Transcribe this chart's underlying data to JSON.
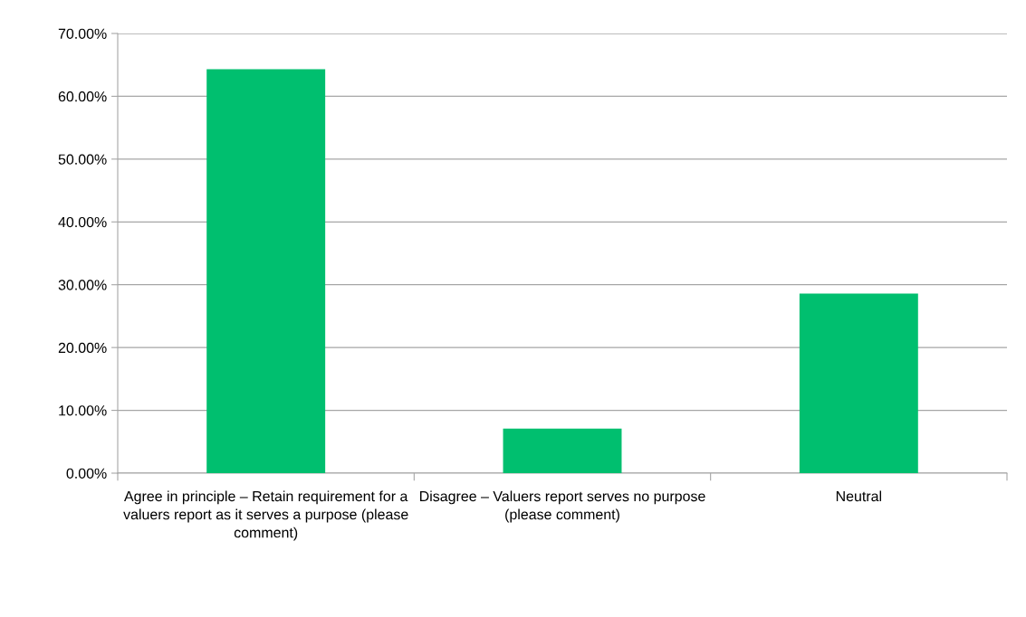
{
  "chart_data": {
    "type": "bar",
    "categories": [
      "Agree in principle – Retain requirement for a valuers report as it serves a purpose (please comment)",
      "Disagree – Valuers report serves no purpose (please comment)",
      "Neutral"
    ],
    "values": [
      64.3,
      7.1,
      28.6
    ],
    "color": "#00bf6f",
    "ylim": [
      0,
      70
    ],
    "yticks": [
      {
        "value": 0,
        "label": "0.00%"
      },
      {
        "value": 10,
        "label": "10.00%"
      },
      {
        "value": 20,
        "label": "20.00%"
      },
      {
        "value": 30,
        "label": "30.00%"
      },
      {
        "value": 40,
        "label": "40.00%"
      },
      {
        "value": 50,
        "label": "50.00%"
      },
      {
        "value": 60,
        "label": "60.00%"
      },
      {
        "value": 70,
        "label": "70.00%"
      }
    ],
    "grid": "y",
    "legend": false
  }
}
